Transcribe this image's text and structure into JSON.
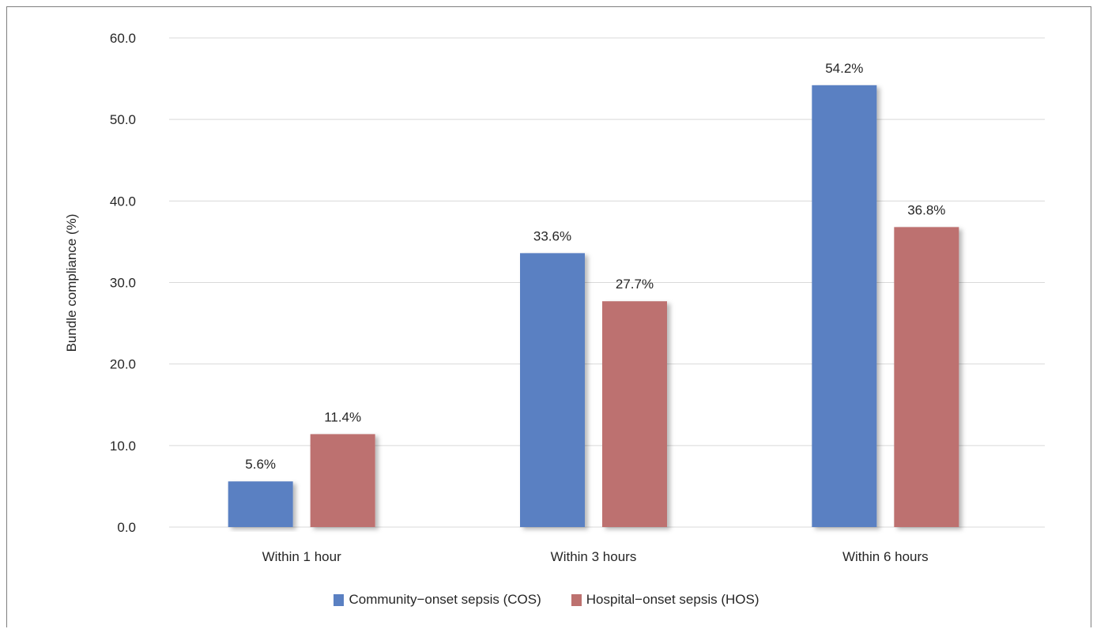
{
  "chart_data": {
    "type": "bar",
    "categories": [
      "Within 1 hour",
      "Within 3 hours",
      "Within 6 hours"
    ],
    "series": [
      {
        "name": "Community−onset sepsis (COS)",
        "values": [
          5.6,
          33.6,
          54.2
        ],
        "labels": [
          "5.6%",
          "33.6%",
          "54.2%"
        ],
        "color": "#5a80c2"
      },
      {
        "name": "Hospital−onset sepsis (HOS)",
        "values": [
          11.4,
          27.7,
          36.8
        ],
        "labels": [
          "11.4%",
          "27.7%",
          "36.8%"
        ],
        "color": "#bd716f"
      }
    ],
    "title": "",
    "xlabel": "",
    "ylabel": "Bundle compliance (%)",
    "ylim": [
      0,
      60
    ],
    "yticks": [
      "0.0",
      "10.0",
      "20.0",
      "30.0",
      "40.0",
      "50.0",
      "60.0"
    ],
    "grid": true,
    "legend_position": "bottom"
  }
}
